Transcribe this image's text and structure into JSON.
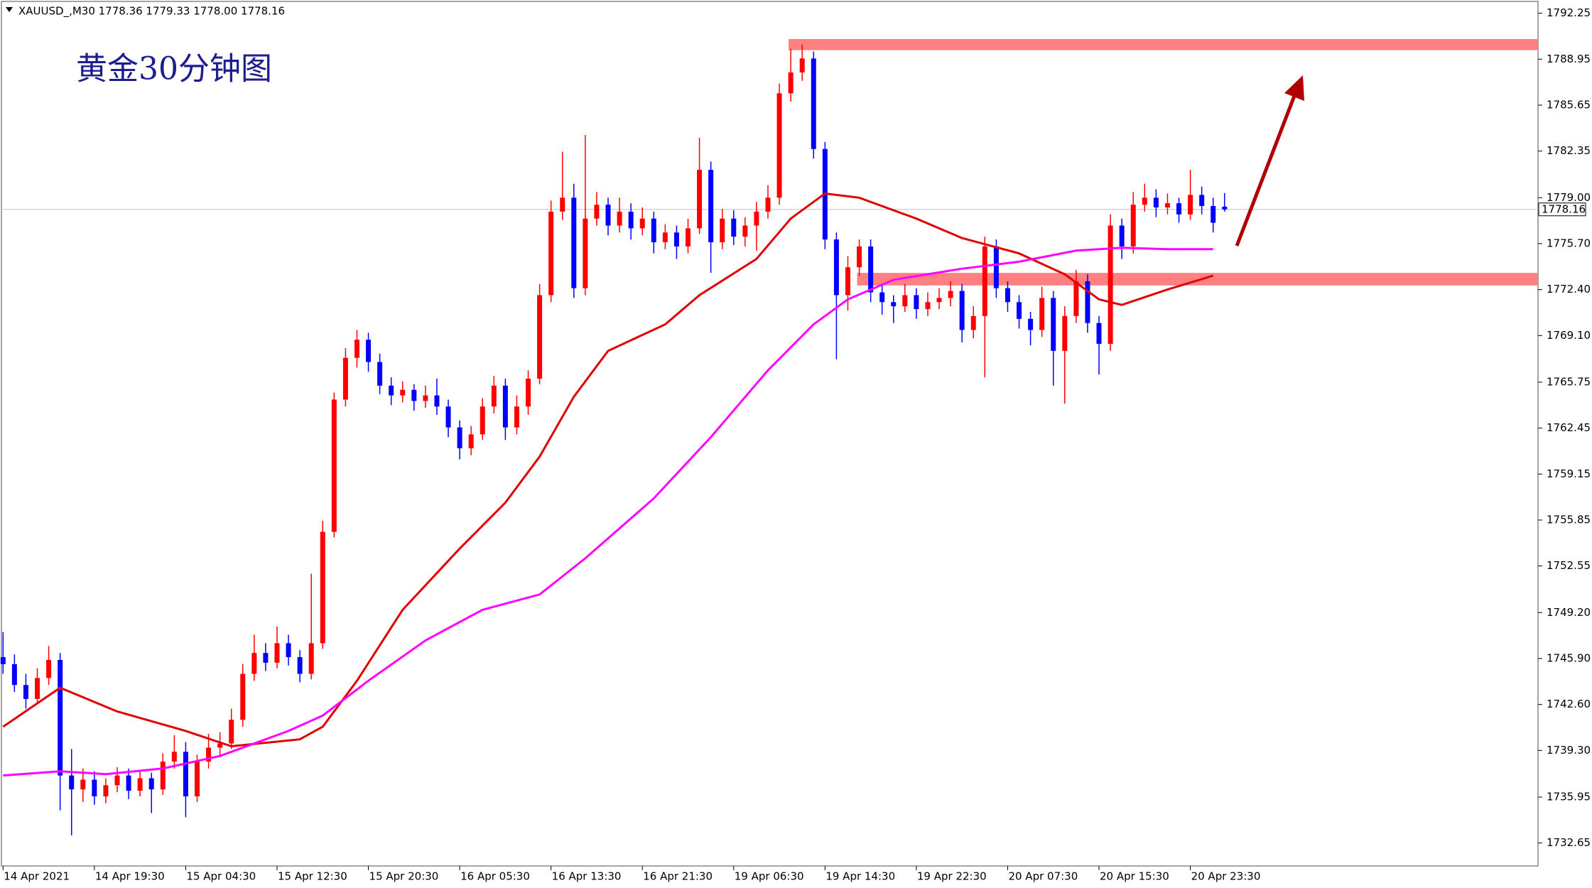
{
  "chart_data": {
    "type": "candlestick",
    "header": "XAUUSD_,M30  1778.36 1779.33 1778.00 1778.16",
    "title": "黄金30分钟图",
    "up_color": "#ff0000",
    "down_color": "#0000ff",
    "categories": [
      "14 Apr 2021",
      null,
      null,
      null,
      null,
      null,
      null,
      null,
      "14 Apr 19:30",
      null,
      null,
      null,
      null,
      null,
      null,
      null,
      "15 Apr 04:30",
      null,
      null,
      null,
      null,
      null,
      null,
      null,
      "15 Apr 12:30",
      null,
      null,
      null,
      null,
      null,
      null,
      null,
      "15 Apr 20:30",
      null,
      null,
      null,
      null,
      null,
      null,
      null,
      "16 Apr 05:30",
      null,
      null,
      null,
      null,
      null,
      null,
      null,
      "16 Apr 13:30",
      null,
      null,
      null,
      null,
      null,
      null,
      null,
      "16 Apr 21:30",
      null,
      null,
      null,
      null,
      null,
      null,
      null,
      "19 Apr 06:30",
      null,
      null,
      null,
      null,
      null,
      null,
      null,
      "19 Apr 14:30",
      null,
      null,
      null,
      null,
      null,
      null,
      null,
      "19 Apr 22:30",
      null,
      null,
      null,
      null,
      null,
      null,
      null,
      "20 Apr 07:30",
      null,
      null,
      null,
      null,
      null,
      null,
      null,
      "20 Apr 15:30",
      null,
      null,
      null,
      null,
      null,
      null,
      null,
      "20 Apr 23:30",
      null,
      null,
      null
    ],
    "ohlc": [
      [
        1746,
        1747.8,
        1744.8,
        1745.5
      ],
      [
        1745.5,
        1746.2,
        1743.5,
        1744
      ],
      [
        1744,
        1744.8,
        1742.3,
        1743
      ],
      [
        1743,
        1745.2,
        1742.6,
        1744.5
      ],
      [
        1744.5,
        1746.8,
        1744,
        1745.8
      ],
      [
        1745.8,
        1746.3,
        1735,
        1737.5
      ],
      [
        1737.5,
        1739.4,
        1733.2,
        1736.5
      ],
      [
        1736.5,
        1738,
        1735.6,
        1737.2
      ],
      [
        1737.2,
        1737.8,
        1735.4,
        1736
      ],
      [
        1736,
        1737.3,
        1735.5,
        1736.8
      ],
      [
        1736.8,
        1738.1,
        1736.3,
        1737.5
      ],
      [
        1737.5,
        1738,
        1735.8,
        1736.4
      ],
      [
        1736.4,
        1737.9,
        1736,
        1737.3
      ],
      [
        1737.3,
        1737.7,
        1734.8,
        1736.5
      ],
      [
        1736.5,
        1739.1,
        1736.1,
        1738.5
      ],
      [
        1738.5,
        1740.4,
        1738,
        1739.2
      ],
      [
        1739.2,
        1739.9,
        1734.5,
        1736
      ],
      [
        1736,
        1739,
        1735.6,
        1738.5
      ],
      [
        1738.5,
        1740.5,
        1738,
        1739.5
      ],
      [
        1739.5,
        1740.6,
        1738.8,
        1739.8
      ],
      [
        1739.8,
        1742.3,
        1739.4,
        1741.5
      ],
      [
        1741.5,
        1745.5,
        1741,
        1744.8
      ],
      [
        1744.8,
        1747.6,
        1744.3,
        1746.3
      ],
      [
        1746.3,
        1747,
        1745,
        1745.6
      ],
      [
        1745.6,
        1748.2,
        1745.2,
        1747
      ],
      [
        1747,
        1747.6,
        1745.4,
        1746
      ],
      [
        1746,
        1746.5,
        1744.2,
        1744.8
      ],
      [
        1744.8,
        1752,
        1744.4,
        1747
      ],
      [
        1747,
        1755.8,
        1746.6,
        1755
      ],
      [
        1755,
        1765,
        1754.6,
        1764.5
      ],
      [
        1764.5,
        1768.2,
        1764,
        1767.5
      ],
      [
        1767.5,
        1769.5,
        1766.8,
        1768.8
      ],
      [
        1768.8,
        1769.3,
        1766.5,
        1767.2
      ],
      [
        1767.2,
        1767.8,
        1764.9,
        1765.5
      ],
      [
        1765.5,
        1766.1,
        1764.1,
        1764.8
      ],
      [
        1764.8,
        1765.8,
        1764.3,
        1765.2
      ],
      [
        1765.2,
        1765.6,
        1763.7,
        1764.4
      ],
      [
        1764.4,
        1765.5,
        1763.9,
        1764.8
      ],
      [
        1764.8,
        1766,
        1763.4,
        1764
      ],
      [
        1764,
        1764.5,
        1761.8,
        1762.5
      ],
      [
        1762.5,
        1763,
        1760.2,
        1761
      ],
      [
        1761,
        1762.6,
        1760.5,
        1762
      ],
      [
        1762,
        1764.6,
        1761.6,
        1764
      ],
      [
        1764,
        1766.2,
        1763.5,
        1765.5
      ],
      [
        1765.5,
        1766,
        1761.6,
        1762.5
      ],
      [
        1762.5,
        1764.8,
        1762,
        1764
      ],
      [
        1764,
        1766.6,
        1763.4,
        1766
      ],
      [
        1766,
        1772.8,
        1765.6,
        1772
      ],
      [
        1772,
        1778.8,
        1771.5,
        1778
      ],
      [
        1778,
        1782.3,
        1777.4,
        1779
      ],
      [
        1779,
        1780,
        1771.8,
        1772.5
      ],
      [
        1772.5,
        1783.5,
        1772,
        1777.5
      ],
      [
        1777.5,
        1779.4,
        1777,
        1778.5
      ],
      [
        1778.5,
        1779,
        1776.3,
        1777
      ],
      [
        1777,
        1779,
        1776.5,
        1778
      ],
      [
        1778,
        1778.6,
        1776,
        1776.8
      ],
      [
        1776.8,
        1778.3,
        1776.3,
        1777.5
      ],
      [
        1777.5,
        1778,
        1775,
        1775.8
      ],
      [
        1775.8,
        1777.1,
        1775.3,
        1776.5
      ],
      [
        1776.5,
        1777,
        1774.6,
        1775.5
      ],
      [
        1775.5,
        1777.5,
        1775,
        1776.8
      ],
      [
        1776.8,
        1783.3,
        1776.4,
        1781
      ],
      [
        1781,
        1781.6,
        1773.6,
        1775.8
      ],
      [
        1775.8,
        1778.2,
        1775.3,
        1777.5
      ],
      [
        1777.5,
        1778.1,
        1775.6,
        1776.2
      ],
      [
        1776.2,
        1777.6,
        1775.5,
        1777
      ],
      [
        1777,
        1778.7,
        1775.2,
        1778
      ],
      [
        1778,
        1779.9,
        1777.5,
        1779
      ],
      [
        1779,
        1787.2,
        1778.5,
        1786.5
      ],
      [
        1786.5,
        1789.7,
        1785.9,
        1788
      ],
      [
        1788,
        1790,
        1787.4,
        1789
      ],
      [
        1789,
        1789.5,
        1781.8,
        1782.5
      ],
      [
        1782.5,
        1783,
        1775.3,
        1776
      ],
      [
        1776,
        1776.5,
        1767.4,
        1772
      ],
      [
        1772,
        1774.8,
        1770.9,
        1774
      ],
      [
        1774,
        1776,
        1773.4,
        1775.5
      ],
      [
        1775.5,
        1776,
        1771.5,
        1772.2
      ],
      [
        1772.2,
        1772.7,
        1770.6,
        1771.5
      ],
      [
        1771.5,
        1772,
        1770,
        1771.2
      ],
      [
        1771.2,
        1772.8,
        1770.8,
        1772
      ],
      [
        1772,
        1772.5,
        1770.3,
        1771
      ],
      [
        1771,
        1772.2,
        1770.5,
        1771.5
      ],
      [
        1771.5,
        1772.5,
        1771,
        1771.8
      ],
      [
        1771.8,
        1773,
        1771.2,
        1772.3
      ],
      [
        1772.3,
        1772.8,
        1768.6,
        1769.5
      ],
      [
        1769.5,
        1771.2,
        1768.9,
        1770.5
      ],
      [
        1770.5,
        1776.2,
        1766.1,
        1775.5
      ],
      [
        1775.5,
        1776,
        1771.8,
        1772.5
      ],
      [
        1772.5,
        1773,
        1770.8,
        1771.5
      ],
      [
        1771.5,
        1772,
        1769.6,
        1770.3
      ],
      [
        1770.3,
        1770.8,
        1768.4,
        1769.5
      ],
      [
        1769.5,
        1772.6,
        1769,
        1771.8
      ],
      [
        1771.8,
        1772.3,
        1765.5,
        1768
      ],
      [
        1768,
        1771.2,
        1764.2,
        1770.5
      ],
      [
        1770.5,
        1773.8,
        1770,
        1773
      ],
      [
        1773,
        1773.5,
        1769.3,
        1770
      ],
      [
        1770,
        1770.5,
        1766.3,
        1768.5
      ],
      [
        1768.5,
        1777.8,
        1768,
        1777
      ],
      [
        1777,
        1777.5,
        1774.6,
        1775.5
      ],
      [
        1775.5,
        1779.4,
        1775,
        1778.5
      ],
      [
        1778.5,
        1780,
        1778,
        1779
      ],
      [
        1779,
        1779.6,
        1777.6,
        1778.3
      ],
      [
        1778.3,
        1779.3,
        1777.8,
        1778.6
      ],
      [
        1778.6,
        1779,
        1777.2,
        1777.8
      ],
      [
        1777.8,
        1781,
        1777.4,
        1779.2
      ],
      [
        1779.2,
        1779.8,
        1777.8,
        1778.4
      ],
      [
        1778.4,
        1779,
        1776.5,
        1777.2
      ],
      [
        1778.36,
        1779.33,
        1778.0,
        1778.16
      ]
    ],
    "series": [
      {
        "color": "#e00000",
        "x": [
          0,
          5,
          10,
          16,
          20,
          26,
          28,
          31,
          35,
          40,
          44,
          47,
          50,
          53,
          58,
          61,
          66,
          69,
          72,
          75,
          80,
          84,
          89,
          93,
          96,
          98,
          102,
          106
        ],
        "values": [
          1741.0,
          1743.8,
          1742.1,
          1740.7,
          1739.6,
          1740.1,
          1741.0,
          1744.3,
          1749.4,
          1753.8,
          1757.1,
          1760.4,
          1764.7,
          1768.0,
          1769.9,
          1772.0,
          1774.6,
          1777.5,
          1779.3,
          1779.0,
          1777.5,
          1776.1,
          1775.0,
          1773.5,
          1771.7,
          1771.3,
          1772.4,
          1773.4
        ]
      },
      {
        "color": "#ff00ff",
        "x": [
          0,
          5,
          9,
          14,
          19,
          25,
          28,
          32,
          37,
          42,
          47,
          51,
          57,
          62,
          67,
          71,
          74,
          78,
          84,
          89,
          94,
          98,
          102,
          106
        ],
        "values": [
          1737.5,
          1737.8,
          1737.6,
          1738.0,
          1738.9,
          1740.7,
          1741.8,
          1744.3,
          1747.2,
          1749.4,
          1750.5,
          1753.1,
          1757.4,
          1761.8,
          1766.6,
          1769.9,
          1771.7,
          1773.1,
          1773.9,
          1774.4,
          1775.2,
          1775.4,
          1775.3,
          1775.3
        ]
      }
    ],
    "zones": [
      {
        "start": 69,
        "high": 1790.4,
        "low": 1789.6
      },
      {
        "start": 75,
        "high": 1773.6,
        "low": 1772.7
      }
    ],
    "zone_color": "#ff8080",
    "last_price": 1778.16,
    "ylim": [
      1731.0,
      1793.2
    ],
    "yticks": [
      1792.25,
      1788.95,
      1785.65,
      1782.35,
      {
        "value": 1779,
        "label": "1779.00"
      },
      {
        "value": 1775.7,
        "label": "1775.70"
      },
      {
        "value": 1772.4,
        "label": "1772.40"
      },
      {
        "value": 1769.1,
        "label": "1769.10"
      },
      1765.75,
      1762.45,
      1759.15,
      1755.85,
      1752.55,
      {
        "value": 1749.2,
        "label": "1749.20"
      },
      {
        "value": 1745.9,
        "label": "1745.90"
      },
      {
        "value": 1742.6,
        "label": "1742.60"
      },
      {
        "value": 1739.3,
        "label": "1739.30"
      },
      1735.95,
      1732.65
    ]
  }
}
